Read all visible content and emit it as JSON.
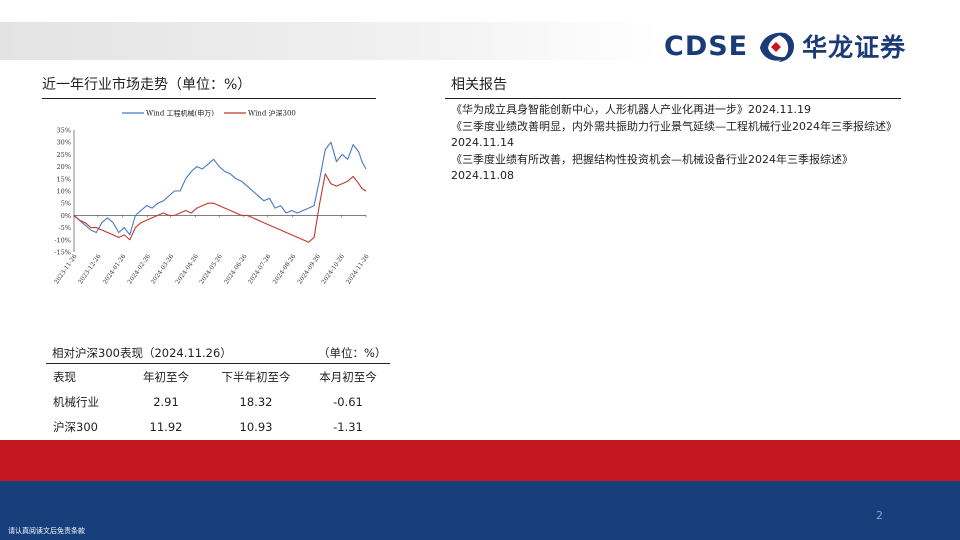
{
  "brand": {
    "name_en": "CDSE",
    "name_cn": "华龙证券",
    "colors": {
      "navy": "#1a3a78",
      "red": "#c3161f",
      "footer_blue": "#173f7c"
    }
  },
  "left": {
    "title": "近一年行业市场走势（单位：%）"
  },
  "chart_data": {
    "type": "line",
    "ylim": [
      -15,
      35
    ],
    "yticks": [
      "35%",
      "30%",
      "25%",
      "20%",
      "15%",
      "10%",
      "5%",
      "0%",
      "-5%",
      "-10%",
      "-15%"
    ],
    "x_ticks": [
      "2023-11-26",
      "2023-12-26",
      "2024-01-26",
      "2024-02-26",
      "2024-03-26",
      "2024-04-26",
      "2024-05-26",
      "2024-06-26",
      "2024-07-26",
      "2024-08-26",
      "2024-09-26",
      "2024-10-26",
      "2024-11-26"
    ],
    "legend": "top",
    "series": [
      {
        "name": "Wind 工程机械(申万)",
        "color": "#4a78c1",
        "points": [
          [
            "2023-11-26",
            0
          ],
          [
            "2023-12-03",
            -2
          ],
          [
            "2023-12-10",
            -4
          ],
          [
            "2023-12-17",
            -6
          ],
          [
            "2023-12-24",
            -7
          ],
          [
            "2023-12-31",
            -3
          ],
          [
            "2024-01-07",
            -1
          ],
          [
            "2024-01-14",
            -3
          ],
          [
            "2024-01-21",
            -7
          ],
          [
            "2024-01-28",
            -5
          ],
          [
            "2024-02-04",
            -8
          ],
          [
            "2024-02-11",
            0
          ],
          [
            "2024-02-18",
            2
          ],
          [
            "2024-02-25",
            4
          ],
          [
            "2024-03-03",
            3
          ],
          [
            "2024-03-10",
            5
          ],
          [
            "2024-03-17",
            6
          ],
          [
            "2024-03-24",
            8
          ],
          [
            "2024-03-31",
            10
          ],
          [
            "2024-04-07",
            10
          ],
          [
            "2024-04-14",
            15
          ],
          [
            "2024-04-21",
            18
          ],
          [
            "2024-04-28",
            20
          ],
          [
            "2024-05-05",
            19
          ],
          [
            "2024-05-12",
            21
          ],
          [
            "2024-05-19",
            23
          ],
          [
            "2024-05-26",
            20
          ],
          [
            "2024-06-02",
            18
          ],
          [
            "2024-06-09",
            17
          ],
          [
            "2024-06-16",
            15
          ],
          [
            "2024-06-23",
            14
          ],
          [
            "2024-06-30",
            12
          ],
          [
            "2024-07-07",
            10
          ],
          [
            "2024-07-14",
            8
          ],
          [
            "2024-07-21",
            6
          ],
          [
            "2024-07-28",
            7
          ],
          [
            "2024-08-04",
            3
          ],
          [
            "2024-08-11",
            4
          ],
          [
            "2024-08-18",
            1
          ],
          [
            "2024-08-25",
            2
          ],
          [
            "2024-09-01",
            1
          ],
          [
            "2024-09-08",
            2
          ],
          [
            "2024-09-15",
            3
          ],
          [
            "2024-09-22",
            4
          ],
          [
            "2024-09-29",
            15
          ],
          [
            "2024-10-06",
            27
          ],
          [
            "2024-10-13",
            30
          ],
          [
            "2024-10-20",
            22
          ],
          [
            "2024-10-27",
            25
          ],
          [
            "2024-11-03",
            23
          ],
          [
            "2024-11-10",
            29
          ],
          [
            "2024-11-17",
            26
          ],
          [
            "2024-11-21",
            22
          ],
          [
            "2024-11-26",
            19
          ]
        ]
      },
      {
        "name": "Wind 沪深300",
        "color": "#c0392b",
        "points": [
          [
            "2023-11-26",
            0
          ],
          [
            "2023-12-03",
            -2
          ],
          [
            "2023-12-10",
            -3
          ],
          [
            "2023-12-17",
            -5
          ],
          [
            "2023-12-24",
            -5
          ],
          [
            "2023-12-31",
            -6
          ],
          [
            "2024-01-07",
            -7
          ],
          [
            "2024-01-14",
            -8
          ],
          [
            "2024-01-21",
            -9
          ],
          [
            "2024-01-28",
            -8
          ],
          [
            "2024-02-04",
            -10
          ],
          [
            "2024-02-11",
            -5
          ],
          [
            "2024-02-18",
            -3
          ],
          [
            "2024-02-25",
            -2
          ],
          [
            "2024-03-03",
            -1
          ],
          [
            "2024-03-10",
            0
          ],
          [
            "2024-03-17",
            1
          ],
          [
            "2024-03-24",
            0
          ],
          [
            "2024-03-31",
            0
          ],
          [
            "2024-04-07",
            1
          ],
          [
            "2024-04-14",
            2
          ],
          [
            "2024-04-21",
            1
          ],
          [
            "2024-04-28",
            3
          ],
          [
            "2024-05-05",
            4
          ],
          [
            "2024-05-12",
            5
          ],
          [
            "2024-05-19",
            5
          ],
          [
            "2024-05-26",
            4
          ],
          [
            "2024-06-02",
            3
          ],
          [
            "2024-06-09",
            2
          ],
          [
            "2024-06-16",
            1
          ],
          [
            "2024-06-23",
            0
          ],
          [
            "2024-06-30",
            0
          ],
          [
            "2024-07-07",
            -1
          ],
          [
            "2024-07-14",
            -2
          ],
          [
            "2024-07-21",
            -3
          ],
          [
            "2024-07-28",
            -4
          ],
          [
            "2024-08-04",
            -5
          ],
          [
            "2024-08-11",
            -6
          ],
          [
            "2024-08-18",
            -7
          ],
          [
            "2024-08-25",
            -8
          ],
          [
            "2024-09-01",
            -9
          ],
          [
            "2024-09-08",
            -10
          ],
          [
            "2024-09-15",
            -11
          ],
          [
            "2024-09-22",
            -9
          ],
          [
            "2024-09-29",
            5
          ],
          [
            "2024-10-06",
            17
          ],
          [
            "2024-10-13",
            13
          ],
          [
            "2024-10-20",
            12
          ],
          [
            "2024-10-27",
            13
          ],
          [
            "2024-11-03",
            14
          ],
          [
            "2024-11-10",
            16
          ],
          [
            "2024-11-17",
            13
          ],
          [
            "2024-11-21",
            11
          ],
          [
            "2024-11-26",
            10
          ]
        ]
      }
    ]
  },
  "right": {
    "title": "相关报告",
    "reports": [
      "《华为成立具身智能创新中心，人形机器人产业化再进一步》2024.11.19",
      "《三季度业绩改善明显，内外需共振助力行业景气延续—工程机械行业2024年三季报综述》2024.11.14",
      "《三季度业绩有所改善，把握结构性投资机会—机械设备行业2024年三季报综述》2024.11.08"
    ]
  },
  "performance": {
    "title": "相对沪深300表现（2024.11.26）",
    "unit": "（单位：%）",
    "headers": [
      "表现",
      "年初至今",
      "下半年初至今",
      "本月初至今"
    ],
    "rows": [
      [
        "机械行业",
        "2.91",
        "18.32",
        "-0.61"
      ],
      [
        "沪深300",
        "11.92",
        "10.93",
        "-1.31"
      ]
    ]
  },
  "footer": {
    "page": "2",
    "disclaimer": "请认真阅读文后免责条款"
  }
}
